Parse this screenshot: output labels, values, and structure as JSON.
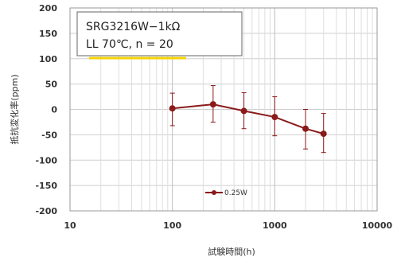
{
  "chart_data": {
    "type": "line",
    "xlabel": "試験時間(h)",
    "ylabel": "抵抗変化率(ppm)",
    "xscale": "log",
    "xlim": [
      10,
      10000
    ],
    "ylim": [
      -200,
      200
    ],
    "x_ticks": [
      10,
      100,
      1000,
      10000
    ],
    "x_tick_labels": [
      "10",
      "100",
      "1000",
      "10000"
    ],
    "y_ticks": [
      -200,
      -150,
      -100,
      -50,
      0,
      50,
      100,
      150,
      200
    ],
    "y_tick_labels": [
      "-200",
      "-150",
      "-100",
      "-50",
      "0",
      "50",
      "100",
      "150",
      "200"
    ],
    "grid": true,
    "annotation": {
      "line1": "SRG3216W−1kΩ",
      "line2": "LL 70℃, n = 20"
    },
    "legend": {
      "position": "bottom-center",
      "entries": [
        "0.25W"
      ]
    },
    "series": [
      {
        "name": "0.25W",
        "color": "#8b1a1a",
        "x": [
          100,
          250,
          500,
          1000,
          2000,
          3000
        ],
        "y": [
          2,
          10,
          -3,
          -15,
          -38,
          -48
        ],
        "err_low": [
          -32,
          -25,
          -38,
          -52,
          -78,
          -85
        ],
        "err_high": [
          32,
          47,
          33,
          25,
          0,
          -8
        ]
      }
    ]
  }
}
